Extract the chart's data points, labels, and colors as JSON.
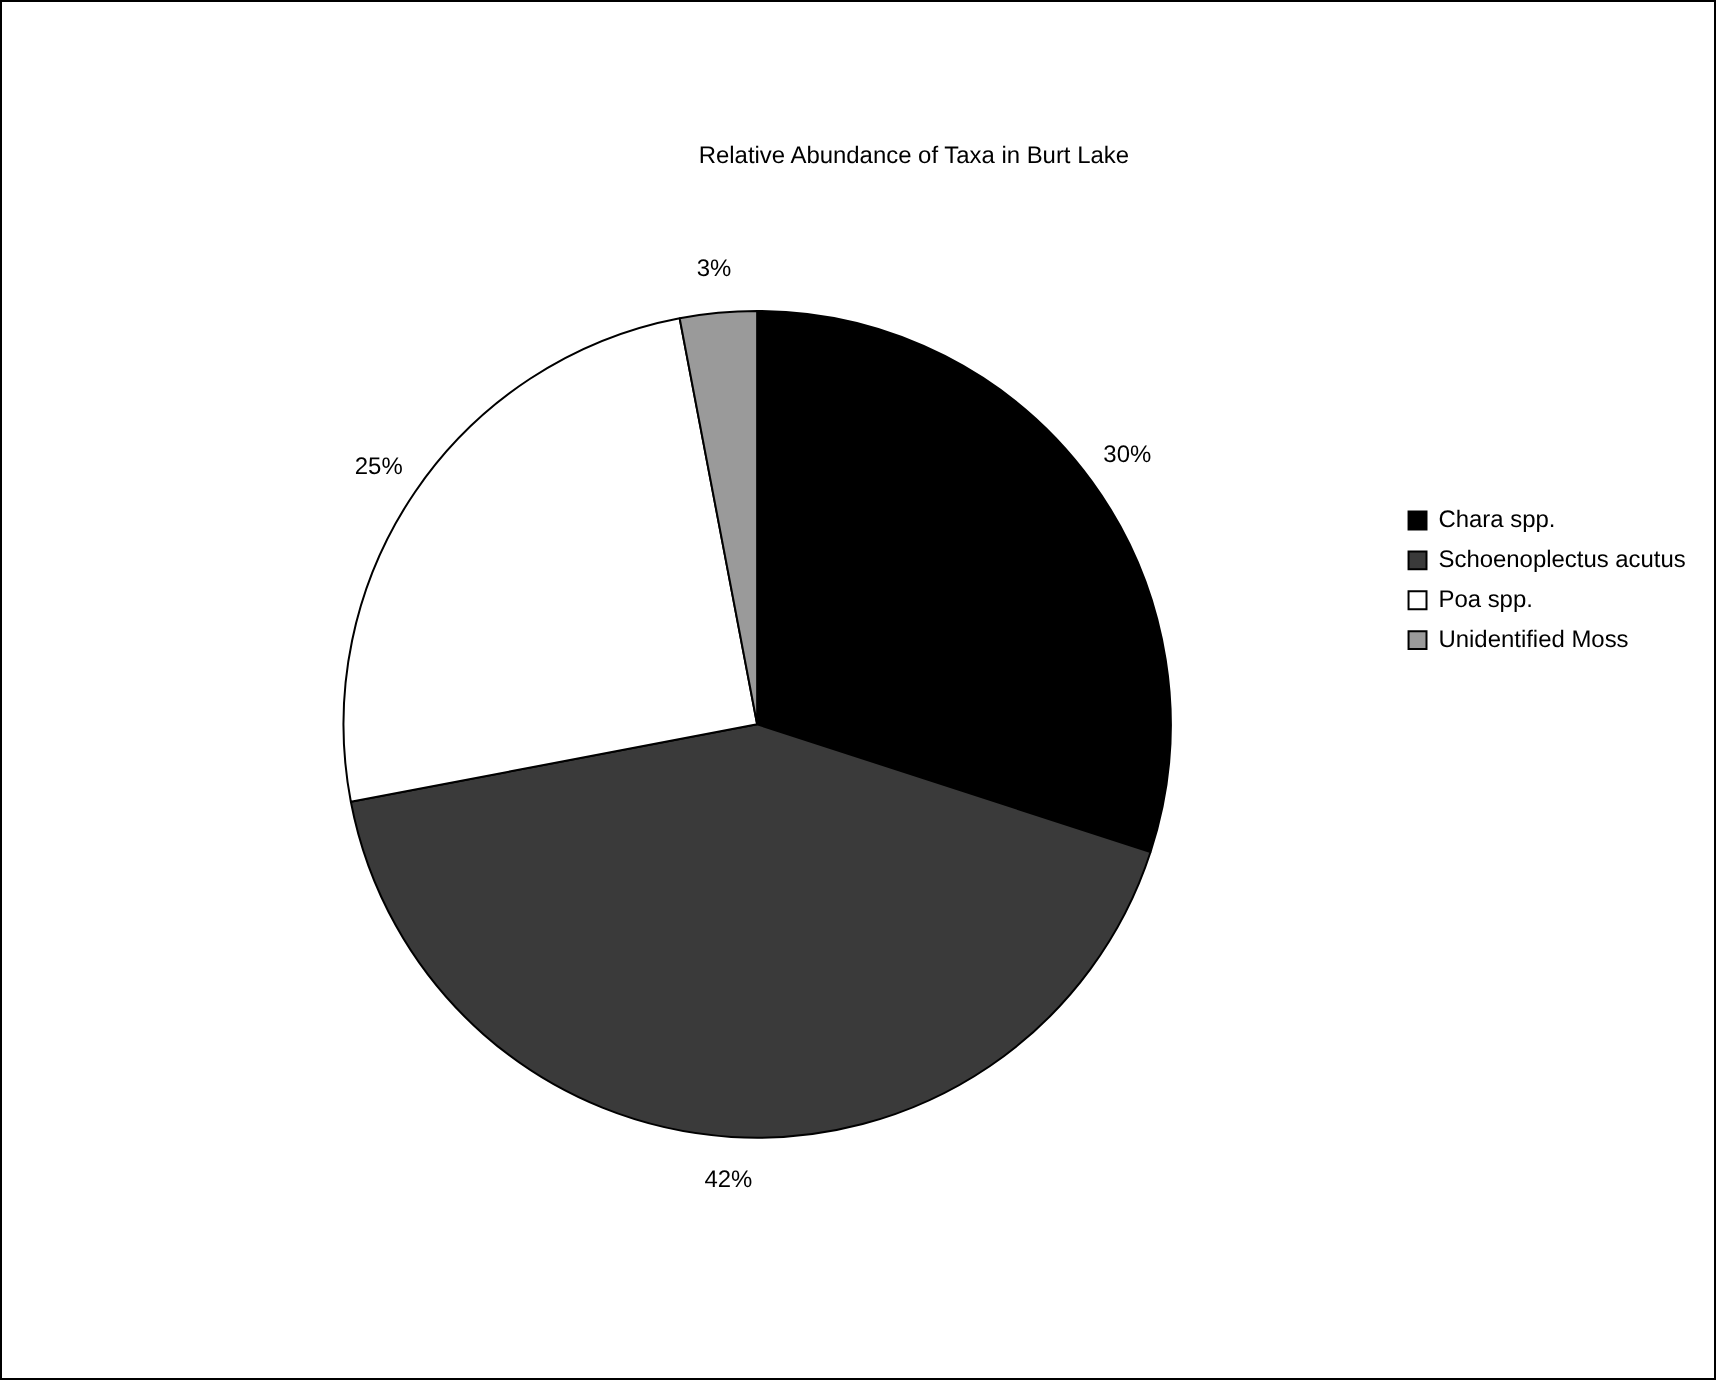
{
  "chart_data": {
    "type": "pie",
    "title": "Relative Abundance of Taxa in Burt Lake",
    "categories": [
      "Chara spp.",
      "Schoenoplectus acutus",
      "Poa spp.",
      "Unidentified Moss"
    ],
    "values": [
      30,
      42,
      25,
      3
    ],
    "colors": [
      "#000000",
      "#3a3a3a",
      "#ffffff",
      "#9a9a9a"
    ],
    "value_labels": [
      "30%",
      "42%",
      "25%",
      "3%"
    ],
    "legend": "right"
  }
}
